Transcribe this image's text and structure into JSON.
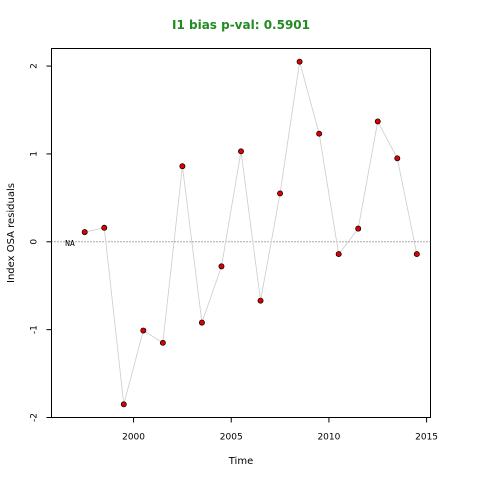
{
  "chart_data": {
    "type": "scatter",
    "title": "I1 bias p-val: 0.5901",
    "title_color": "#228B22",
    "xlabel": "Time",
    "ylabel": "Index OSA residuals",
    "xlim": [
      1995.8,
      2015.2
    ],
    "ylim": [
      -2.0,
      2.2
    ],
    "xticks": [
      2000,
      2005,
      2010,
      2015
    ],
    "xtick_labels": [
      "2000",
      "2005",
      "2010",
      "2015"
    ],
    "yticks": [
      -2,
      -1,
      0,
      1,
      2
    ],
    "ytick_labels": [
      "-2",
      "-1",
      "0",
      "1",
      "2"
    ],
    "reference_line": {
      "y": 0,
      "style": "dotted",
      "color": "#555555"
    },
    "annotation": {
      "text": "NA",
      "x": 1996.5,
      "y": 0
    },
    "grid": false,
    "legend": "none",
    "series": [
      {
        "point_color": "#dd0000",
        "line_color": "#cccccc",
        "x": [
          1997.5,
          1998.5,
          1999.5,
          2000.5,
          2001.5,
          2002.5,
          2003.5,
          2004.5,
          2005.5,
          2006.5,
          2007.5,
          2008.5,
          2009.5,
          2010.5,
          2011.5,
          2012.5,
          2013.5,
          2014.5
        ],
        "y": [
          0.11,
          0.16,
          -1.85,
          -1.01,
          -1.15,
          0.86,
          -0.92,
          -0.28,
          1.03,
          -0.67,
          0.55,
          2.05,
          1.23,
          -0.14,
          0.15,
          1.37,
          0.95,
          -0.14
        ]
      }
    ]
  }
}
